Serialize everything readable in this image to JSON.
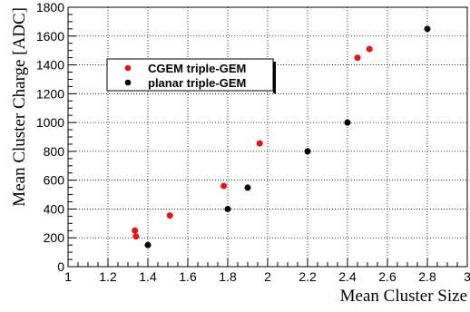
{
  "chart_data": {
    "type": "scatter",
    "title": "",
    "xlabel": "Mean Cluster Size",
    "ylabel": "Mean Cluster Charge [ADC]",
    "xlim": [
      1,
      3
    ],
    "ylim": [
      0,
      1800
    ],
    "x_ticks": [
      "1",
      "1.2",
      "1.4",
      "1.6",
      "1.8",
      "2",
      "2.2",
      "2.4",
      "2.6",
      "2.8",
      "3"
    ],
    "y_ticks": [
      "0",
      "200",
      "400",
      "600",
      "800",
      "1000",
      "1200",
      "1400",
      "1600",
      "1800"
    ],
    "grid": true,
    "legend_position": "upper-left",
    "series": [
      {
        "name": "CGEM triple-GEM",
        "color": "#ee1111",
        "marker": "circle",
        "points": [
          {
            "x": 1.335,
            "y": 250
          },
          {
            "x": 1.34,
            "y": 210
          },
          {
            "x": 1.51,
            "y": 355
          },
          {
            "x": 1.78,
            "y": 560
          },
          {
            "x": 1.96,
            "y": 855
          },
          {
            "x": 2.45,
            "y": 1450
          },
          {
            "x": 2.51,
            "y": 1510
          }
        ]
      },
      {
        "name": "planar triple-GEM",
        "color": "#000000",
        "marker": "circle",
        "points": [
          {
            "x": 1.4,
            "y": 150
          },
          {
            "x": 1.8,
            "y": 400
          },
          {
            "x": 1.9,
            "y": 548
          },
          {
            "x": 2.2,
            "y": 800
          },
          {
            "x": 2.4,
            "y": 1000
          },
          {
            "x": 2.8,
            "y": 1650
          }
        ]
      }
    ]
  }
}
